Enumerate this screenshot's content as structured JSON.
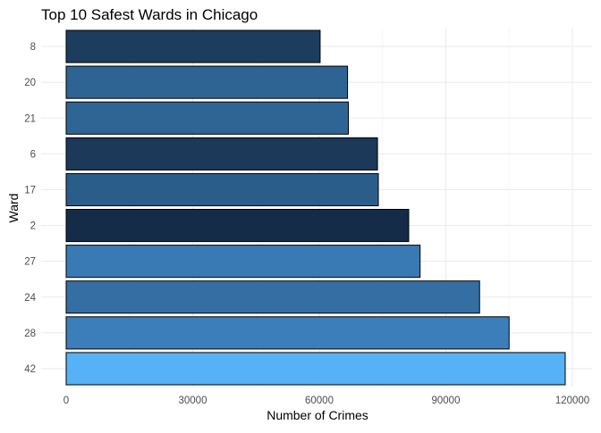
{
  "chart_data": {
    "type": "bar",
    "orientation": "horizontal",
    "title": "Top 10 Safest Wards in Chicago",
    "xlabel": "Number of Crimes",
    "ylabel": "Ward",
    "categories": [
      "8",
      "20",
      "21",
      "6",
      "17",
      "2",
      "27",
      "24",
      "28",
      "42"
    ],
    "values": [
      60200,
      66700,
      66900,
      73800,
      74000,
      81200,
      83900,
      98000,
      105000,
      118300
    ],
    "colors": [
      "#1d3d5e",
      "#2e6494",
      "#2e6595",
      "#1c395a",
      "#2b5d8a",
      "#142c47",
      "#3a7ab4",
      "#346ea2",
      "#3c7eb9",
      "#56b1f7"
    ],
    "xlim": [
      0,
      120000
    ],
    "xticks": [
      0,
      30000,
      60000,
      90000,
      120000
    ],
    "xtick_labels": [
      "0",
      "30000",
      "60000",
      "90000",
      "120000"
    ],
    "grid": true
  }
}
